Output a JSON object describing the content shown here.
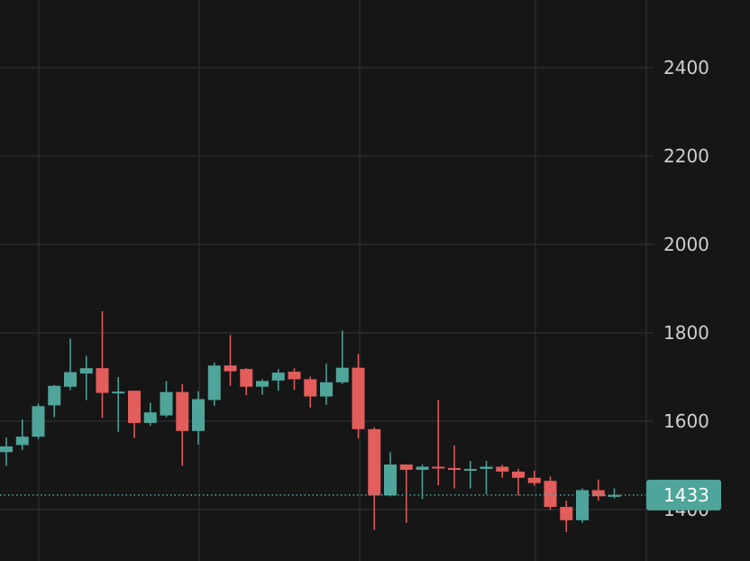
{
  "chart_data": {
    "type": "candlestick",
    "y_ticks": [
      1400,
      1600,
      1800,
      2000,
      2200,
      2400
    ],
    "ylim": [
      1280,
      2510
    ],
    "grid": true,
    "last_price": {
      "value": 1433,
      "label": "1433"
    },
    "colors": {
      "up": "#4fa59a",
      "down": "#e35d5b",
      "background": "#161617",
      "grid": "#2a2a2d",
      "axis_text": "#cfcfd2",
      "price_line": "#4fa59a",
      "price_label_bg": "#4fa59a"
    },
    "candles": [
      {
        "o": 1530,
        "h": 1563,
        "l": 1499,
        "c": 1543
      },
      {
        "o": 1546,
        "h": 1604,
        "l": 1535,
        "c": 1565
      },
      {
        "o": 1565,
        "h": 1640,
        "l": 1560,
        "c": 1634
      },
      {
        "o": 1636,
        "h": 1682,
        "l": 1609,
        "c": 1680
      },
      {
        "o": 1678,
        "h": 1787,
        "l": 1670,
        "c": 1711
      },
      {
        "o": 1708,
        "h": 1748,
        "l": 1648,
        "c": 1720
      },
      {
        "o": 1720,
        "h": 1849,
        "l": 1607,
        "c": 1664
      },
      {
        "o": 1667,
        "h": 1700,
        "l": 1576,
        "c": 1667
      },
      {
        "o": 1669,
        "h": 1669,
        "l": 1562,
        "c": 1596
      },
      {
        "o": 1596,
        "h": 1642,
        "l": 1590,
        "c": 1620
      },
      {
        "o": 1613,
        "h": 1691,
        "l": 1609,
        "c": 1666
      },
      {
        "o": 1666,
        "h": 1684,
        "l": 1499,
        "c": 1578
      },
      {
        "o": 1578,
        "h": 1668,
        "l": 1547,
        "c": 1650
      },
      {
        "o": 1648,
        "h": 1733,
        "l": 1635,
        "c": 1726
      },
      {
        "o": 1726,
        "h": 1795,
        "l": 1680,
        "c": 1713
      },
      {
        "o": 1718,
        "h": 1720,
        "l": 1659,
        "c": 1678
      },
      {
        "o": 1678,
        "h": 1695,
        "l": 1660,
        "c": 1691
      },
      {
        "o": 1692,
        "h": 1718,
        "l": 1669,
        "c": 1710
      },
      {
        "o": 1712,
        "h": 1720,
        "l": 1671,
        "c": 1695
      },
      {
        "o": 1695,
        "h": 1701,
        "l": 1631,
        "c": 1656
      },
      {
        "o": 1656,
        "h": 1730,
        "l": 1637,
        "c": 1688
      },
      {
        "o": 1688,
        "h": 1805,
        "l": 1684,
        "c": 1721
      },
      {
        "o": 1721,
        "h": 1752,
        "l": 1561,
        "c": 1582
      },
      {
        "o": 1582,
        "h": 1586,
        "l": 1354,
        "c": 1432
      },
      {
        "o": 1432,
        "h": 1530,
        "l": 1430,
        "c": 1502
      },
      {
        "o": 1502,
        "h": 1502,
        "l": 1370,
        "c": 1490
      },
      {
        "o": 1490,
        "h": 1502,
        "l": 1424,
        "c": 1497
      },
      {
        "o": 1497,
        "h": 1648,
        "l": 1455,
        "c": 1494
      },
      {
        "o": 1494,
        "h": 1545,
        "l": 1448,
        "c": 1491
      },
      {
        "o": 1489,
        "h": 1510,
        "l": 1448,
        "c": 1492
      },
      {
        "o": 1492,
        "h": 1510,
        "l": 1435,
        "c": 1497
      },
      {
        "o": 1497,
        "h": 1501,
        "l": 1472,
        "c": 1486
      },
      {
        "o": 1486,
        "h": 1492,
        "l": 1432,
        "c": 1472
      },
      {
        "o": 1472,
        "h": 1488,
        "l": 1454,
        "c": 1460
      },
      {
        "o": 1465,
        "h": 1475,
        "l": 1400,
        "c": 1406
      },
      {
        "o": 1406,
        "h": 1420,
        "l": 1349,
        "c": 1376
      },
      {
        "o": 1376,
        "h": 1448,
        "l": 1370,
        "c": 1444
      },
      {
        "o": 1444,
        "h": 1468,
        "l": 1420,
        "c": 1430
      },
      {
        "o": 1430,
        "h": 1448,
        "l": 1425,
        "c": 1433
      }
    ]
  }
}
